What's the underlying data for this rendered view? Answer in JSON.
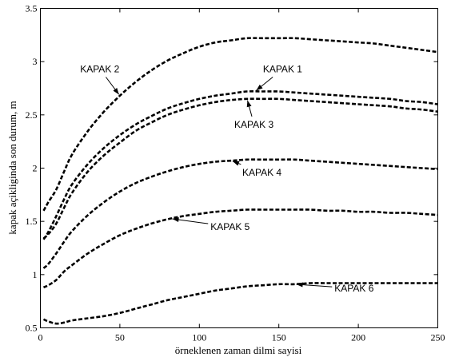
{
  "chart_data": {
    "type": "line",
    "title": "",
    "xlabel": "örneklenen zaman dilmi sayisi",
    "ylabel": "kapak açikliginda son durum, m",
    "xlim": [
      0,
      250
    ],
    "ylim": [
      0.5,
      3.5
    ],
    "xticks": [
      0,
      50,
      100,
      150,
      200,
      250
    ],
    "yticks": [
      0.5,
      1,
      1.5,
      2,
      2.5,
      3,
      3.5
    ],
    "grid": false,
    "x": [
      2,
      5,
      10,
      15,
      20,
      30,
      40,
      50,
      60,
      70,
      80,
      90,
      100,
      110,
      120,
      130,
      140,
      150,
      160,
      170,
      180,
      190,
      200,
      210,
      220,
      230,
      240,
      250
    ],
    "series": [
      {
        "name": "KAPAK 1",
        "values": [
          1.33,
          1.4,
          1.55,
          1.71,
          1.85,
          2.04,
          2.19,
          2.31,
          2.41,
          2.49,
          2.56,
          2.61,
          2.65,
          2.68,
          2.7,
          2.72,
          2.72,
          2.72,
          2.71,
          2.7,
          2.69,
          2.68,
          2.67,
          2.66,
          2.65,
          2.63,
          2.62,
          2.6
        ]
      },
      {
        "name": "KAPAK 2",
        "values": [
          1.6,
          1.68,
          1.8,
          1.97,
          2.13,
          2.35,
          2.53,
          2.68,
          2.81,
          2.92,
          3.01,
          3.08,
          3.14,
          3.18,
          3.2,
          3.22,
          3.22,
          3.22,
          3.22,
          3.21,
          3.2,
          3.19,
          3.18,
          3.17,
          3.15,
          3.13,
          3.11,
          3.09
        ]
      },
      {
        "name": "KAPAK 3",
        "values": [
          1.34,
          1.38,
          1.48,
          1.63,
          1.77,
          1.97,
          2.12,
          2.24,
          2.35,
          2.43,
          2.5,
          2.55,
          2.59,
          2.62,
          2.64,
          2.65,
          2.65,
          2.65,
          2.64,
          2.63,
          2.62,
          2.61,
          2.6,
          2.59,
          2.58,
          2.56,
          2.55,
          2.53
        ]
      },
      {
        "name": "KAPAK 4",
        "values": [
          1.06,
          1.1,
          1.2,
          1.31,
          1.41,
          1.56,
          1.68,
          1.78,
          1.86,
          1.92,
          1.97,
          2.01,
          2.04,
          2.06,
          2.07,
          2.08,
          2.08,
          2.08,
          2.08,
          2.07,
          2.06,
          2.05,
          2.04,
          2.03,
          2.02,
          2.01,
          2.0,
          1.99
        ]
      },
      {
        "name": "KAPAK 5",
        "values": [
          0.88,
          0.9,
          0.95,
          1.03,
          1.09,
          1.2,
          1.29,
          1.37,
          1.43,
          1.48,
          1.52,
          1.55,
          1.57,
          1.59,
          1.6,
          1.61,
          1.61,
          1.61,
          1.61,
          1.61,
          1.6,
          1.6,
          1.59,
          1.59,
          1.58,
          1.58,
          1.57,
          1.56
        ]
      },
      {
        "name": "KAPAK 6",
        "values": [
          0.58,
          0.56,
          0.54,
          0.55,
          0.57,
          0.59,
          0.61,
          0.64,
          0.68,
          0.72,
          0.76,
          0.79,
          0.82,
          0.85,
          0.87,
          0.89,
          0.9,
          0.91,
          0.91,
          0.92,
          0.92,
          0.92,
          0.92,
          0.92,
          0.92,
          0.92,
          0.92,
          0.92
        ]
      }
    ],
    "annotations": [
      {
        "label": "KAPAK 2",
        "series": "KAPAK 2",
        "at_x": 50,
        "text_x": 25,
        "text_y": 2.9
      },
      {
        "label": "KAPAK 1",
        "series": "KAPAK 1",
        "at_x": 135,
        "text_x": 140,
        "text_y": 2.9
      },
      {
        "label": "KAPAK 3",
        "series": "KAPAK 3",
        "at_x": 130,
        "text_x": 122,
        "text_y": 2.38
      },
      {
        "label": "KAPAK 4",
        "series": "KAPAK 4",
        "at_x": 120,
        "text_x": 127,
        "text_y": 1.93
      },
      {
        "label": "KAPAK 5",
        "series": "KAPAK 5",
        "at_x": 82,
        "text_x": 107,
        "text_y": 1.42
      },
      {
        "label": "KAPAK 6",
        "series": "KAPAK 6",
        "at_x": 160,
        "text_x": 185,
        "text_y": 0.84
      }
    ]
  }
}
